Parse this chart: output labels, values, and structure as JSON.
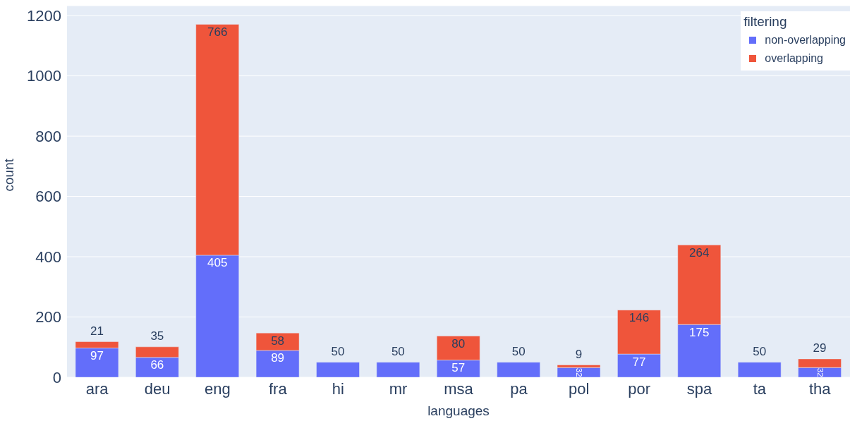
{
  "chart_data": {
    "type": "bar",
    "stacked": true,
    "xlabel": "languages",
    "ylabel": "count",
    "legend_title": "filtering",
    "legend": "top right",
    "grid": "y",
    "data_labels": true,
    "categories": [
      "ara",
      "deu",
      "eng",
      "fra",
      "hi",
      "mr",
      "msa",
      "pa",
      "pol",
      "por",
      "spa",
      "ta",
      "tha"
    ],
    "series": [
      {
        "name": "non-overlapping",
        "color": "#636efa",
        "values": [
          97,
          66,
          405,
          89,
          50,
          50,
          57,
          50,
          32,
          77,
          175,
          50,
          32
        ]
      },
      {
        "name": "overlapping",
        "color": "#ef553b",
        "values": [
          21,
          35,
          766,
          58,
          null,
          null,
          80,
          null,
          9,
          146,
          264,
          null,
          29
        ]
      }
    ],
    "ylim": [
      0,
      1233
    ],
    "yticks": [
      0,
      200,
      400,
      600,
      800,
      1000,
      1200
    ]
  }
}
